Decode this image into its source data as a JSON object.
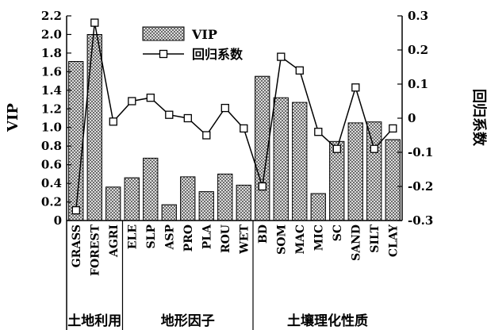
{
  "chart_data": {
    "type": "bar",
    "title": "",
    "categories": [
      "GRASS",
      "FOREST",
      "AGRI",
      "ELE",
      "SLP",
      "ASP",
      "PRO",
      "PLA",
      "ROU",
      "WET",
      "BD",
      "SOM",
      "MAC",
      "MIC",
      "SC",
      "SAND",
      "SILT",
      "CLAY"
    ],
    "groups": [
      {
        "label": "土地利用",
        "start": 0,
        "end": 2
      },
      {
        "label": "地形因子",
        "start": 3,
        "end": 9
      },
      {
        "label": "土壤理化性质",
        "start": 10,
        "end": 17
      }
    ],
    "ylabel": "VIP",
    "y2label": "回归系数",
    "ylim": [
      0,
      2.2
    ],
    "y2lim": [
      -0.3,
      0.3
    ],
    "yticks": [
      "0",
      "0.2",
      "0.4",
      "0.6",
      "0.8",
      "1.0",
      "1.2",
      "1.4",
      "1.6",
      "1.8",
      "2.0",
      "2.2"
    ],
    "y2ticks": [
      "-0.3",
      "-0.2",
      "-0.1",
      "0",
      "0.1",
      "0.2",
      "0.3"
    ],
    "legend_position": "top-center",
    "series": [
      {
        "name": "VIP",
        "kind": "bar",
        "axis": "left",
        "values": [
          1.71,
          2.0,
          0.36,
          0.46,
          0.67,
          0.17,
          0.47,
          0.31,
          0.5,
          0.38,
          1.55,
          1.32,
          1.27,
          0.29,
          0.85,
          1.05,
          1.06,
          0.87
        ]
      },
      {
        "name": "回归系数",
        "kind": "line",
        "axis": "right",
        "values": [
          -0.27,
          0.28,
          -0.01,
          0.05,
          0.06,
          0.01,
          0.0,
          -0.05,
          0.03,
          -0.03,
          -0.2,
          0.18,
          0.14,
          -0.04,
          -0.09,
          0.09,
          -0.09,
          -0.03
        ]
      }
    ]
  }
}
